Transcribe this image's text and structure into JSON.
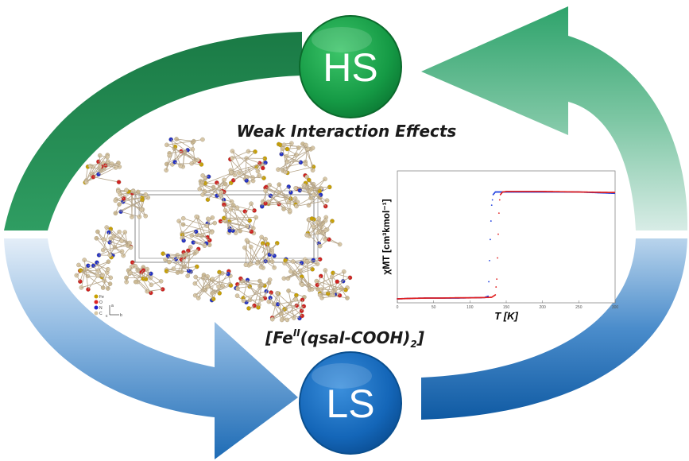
{
  "diagram": {
    "title": "Weak Interaction Effects",
    "formula": {
      "prefix": "[Fe",
      "superscript": "II",
      "mid": "(qsal-COOH)",
      "subscript": "2",
      "suffix": "]"
    },
    "nodes": {
      "hs": {
        "label": "HS",
        "color": "#18a04a"
      },
      "ls": {
        "label": "LS",
        "color": "#1565b8"
      }
    },
    "colors": {
      "green_dark": "#1f8a4c",
      "green_light": "#bfe0d0",
      "blue_light": "#9ec3e6",
      "blue_dark": "#145ea8"
    },
    "crystal_legend": [
      "Fe",
      "O",
      "N",
      "C"
    ],
    "crystal_axes": [
      "a",
      "b",
      "c"
    ]
  },
  "chart_data": {
    "type": "scatter",
    "title": "",
    "xlabel": "T [K]",
    "ylabel": "χMT [cm³kmol⁻¹]",
    "xlim": [
      0,
      300
    ],
    "ylim": [
      0,
      5
    ],
    "x_ticks": [
      "0",
      "50",
      "100",
      "150",
      "200",
      "250",
      "300"
    ],
    "grid": false,
    "series": [
      {
        "color": "#2040e0",
        "x": [
          0,
          20,
          40,
          60,
          80,
          100,
          120,
          125,
          126,
          127,
          128,
          129,
          130,
          132,
          135,
          140,
          150,
          160,
          200,
          250,
          300
        ],
        "y": [
          0.15,
          0.17,
          0.18,
          0.18,
          0.18,
          0.19,
          0.2,
          0.25,
          0.8,
          1.6,
          2.4,
          3.1,
          3.7,
          4.1,
          4.2,
          4.2,
          4.2,
          4.2,
          4.2,
          4.2,
          4.15
        ]
      },
      {
        "color": "#e02020",
        "x": [
          0,
          20,
          40,
          60,
          80,
          100,
          120,
          130,
          135,
          137,
          138,
          139,
          140,
          141,
          142,
          145,
          150,
          160,
          200,
          250,
          300
        ],
        "y": [
          0.15,
          0.17,
          0.18,
          0.18,
          0.19,
          0.19,
          0.2,
          0.21,
          0.3,
          0.9,
          1.7,
          2.6,
          3.4,
          3.9,
          4.1,
          4.2,
          4.22,
          4.22,
          4.22,
          4.2,
          4.18
        ]
      }
    ]
  }
}
